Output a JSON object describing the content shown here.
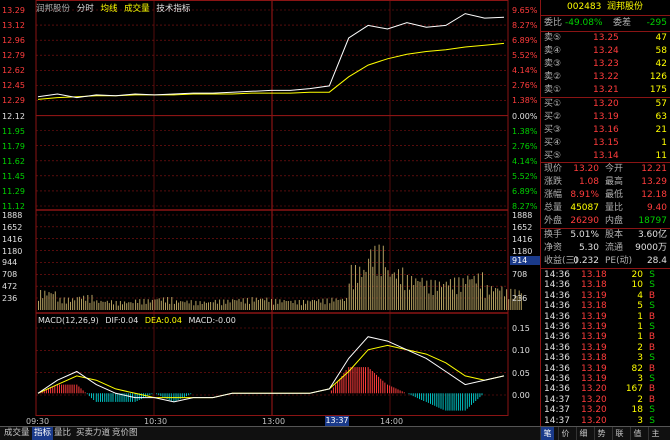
{
  "header": {
    "stock_name": "润邦股份",
    "items": [
      "分时",
      "均线",
      "成交量",
      "技术指标"
    ]
  },
  "macd_label": {
    "name": "MACD(12,26,9)",
    "dif": "DIF:0.04",
    "dea": "DEA:0.04",
    "macd": "MACD:-0.00"
  },
  "price_axis_left": [
    "13.29",
    "13.12",
    "12.96",
    "12.79",
    "12.62",
    "12.45",
    "12.29",
    "12.12",
    "11.95",
    "11.79",
    "11.62",
    "11.45",
    "11.29",
    "11.12"
  ],
  "price_axis_right": [
    "9.65%",
    "8.27%",
    "6.89%",
    "5.52%",
    "4.14%",
    "2.76%",
    "1.38%",
    "0.00%",
    "1.38%",
    "2.76%",
    "4.14%",
    "5.52%",
    "6.89%",
    "8.27%"
  ],
  "volume_axis": [
    "1888",
    "1652",
    "1416",
    "1180",
    "944",
    "708",
    "472",
    "236"
  ],
  "volume_axis_right": [
    "1888",
    "1652",
    "1416",
    "1180",
    "944",
    "708",
    "472",
    "236"
  ],
  "volume_marker": "914",
  "macd_axis": [
    "0.15",
    "0.10",
    "0.05",
    "0.00"
  ],
  "time_axis": [
    "09:30",
    "10:30",
    "13:00",
    "14:00"
  ],
  "time_cursor": "13:37",
  "chart_data": {
    "type": "line",
    "price_ylim": [
      11.12,
      13.29
    ],
    "prev_close": 12.12,
    "x_minutes": [
      0,
      10,
      20,
      30,
      40,
      50,
      60,
      70,
      80,
      90,
      100,
      110,
      120,
      130,
      140,
      150,
      160,
      170,
      180,
      190,
      200,
      210,
      220,
      230,
      240
    ],
    "price": [
      12.33,
      12.36,
      12.32,
      12.35,
      12.34,
      12.36,
      12.35,
      12.36,
      12.37,
      12.37,
      12.38,
      12.39,
      12.4,
      12.4,
      12.42,
      12.45,
      12.98,
      13.12,
      13.08,
      13.15,
      13.1,
      13.12,
      13.25,
      13.2,
      13.21
    ],
    "avg_price": [
      12.3,
      12.32,
      12.33,
      12.34,
      12.34,
      12.35,
      12.35,
      12.35,
      12.36,
      12.36,
      12.36,
      12.37,
      12.37,
      12.37,
      12.38,
      12.38,
      12.55,
      12.68,
      12.75,
      12.8,
      12.83,
      12.85,
      12.88,
      12.9,
      12.92
    ],
    "volume_ylim": [
      0,
      1888
    ],
    "volume": [
      400,
      250,
      300,
      200,
      180,
      220,
      260,
      200,
      180,
      210,
      240,
      260,
      220,
      200,
      230,
      250,
      900,
      1300,
      850,
      700,
      600,
      650,
      750,
      500,
      420
    ],
    "macd_ylim": [
      -0.05,
      0.15
    ],
    "dif": [
      0.0,
      0.03,
      0.05,
      0.02,
      0.0,
      -0.01,
      -0.01,
      -0.02,
      -0.01,
      -0.01,
      0.0,
      0.0,
      0.0,
      0.0,
      0.0,
      0.01,
      0.08,
      0.13,
      0.12,
      0.1,
      0.08,
      0.05,
      0.02,
      0.03,
      0.04
    ],
    "dea": [
      0.0,
      0.02,
      0.04,
      0.03,
      0.01,
      0.0,
      -0.01,
      -0.01,
      -0.01,
      -0.01,
      0.0,
      0.0,
      0.0,
      0.0,
      0.0,
      0.01,
      0.05,
      0.1,
      0.11,
      0.1,
      0.09,
      0.07,
      0.04,
      0.03,
      0.04
    ]
  },
  "quote": {
    "code": "002483",
    "name": "润邦股份",
    "weibi_label": "委比",
    "weibi_value": "-49.08%",
    "weicha_label": "委差",
    "weicha_value": "-295",
    "sell": [
      {
        "label": "卖⑤",
        "price": "13.25",
        "vol": "47"
      },
      {
        "label": "卖④",
        "price": "13.24",
        "vol": "58"
      },
      {
        "label": "卖③",
        "price": "13.23",
        "vol": "42"
      },
      {
        "label": "卖②",
        "price": "13.22",
        "vol": "126"
      },
      {
        "label": "卖①",
        "price": "13.21",
        "vol": "175"
      }
    ],
    "buy": [
      {
        "label": "买①",
        "price": "13.20",
        "vol": "57"
      },
      {
        "label": "买②",
        "price": "13.19",
        "vol": "63"
      },
      {
        "label": "买③",
        "price": "13.16",
        "vol": "21"
      },
      {
        "label": "买④",
        "price": "13.15",
        "vol": "1"
      },
      {
        "label": "买⑤",
        "price": "13.14",
        "vol": "11"
      }
    ],
    "stats": [
      {
        "l1": "现价",
        "v1": "13.20",
        "l2": "今开",
        "v2": "12.21"
      },
      {
        "l1": "涨跌",
        "v1": "1.08",
        "l2": "最高",
        "v2": "13.29"
      },
      {
        "l1": "涨幅",
        "v1": "8.91%",
        "l2": "最低",
        "v2": "12.18"
      },
      {
        "l1": "总量",
        "v1": "45087",
        "l2": "量比",
        "v2": "9.40"
      },
      {
        "l1": "外盘",
        "v1": "26290",
        "l2": "内盘",
        "v2": "18797"
      }
    ],
    "stats2": [
      {
        "l1": "换手",
        "v1": "5.01%",
        "l2": "股本",
        "v2": "3.60亿"
      },
      {
        "l1": "净资",
        "v1": "5.30",
        "l2": "流通",
        "v2": "9000万"
      },
      {
        "l1": "收益(三)",
        "v1": "0.232",
        "l2": "PE(动)",
        "v2": "28.4"
      }
    ]
  },
  "ticks": [
    {
      "t": "14:36",
      "p": "13.18",
      "v": "20",
      "s": "S"
    },
    {
      "t": "14:36",
      "p": "13.18",
      "v": "10",
      "s": "S"
    },
    {
      "t": "14:36",
      "p": "13.19",
      "v": "4",
      "s": "B"
    },
    {
      "t": "14:36",
      "p": "13.18",
      "v": "5",
      "s": "S"
    },
    {
      "t": "14:36",
      "p": "13.19",
      "v": "1",
      "s": "B"
    },
    {
      "t": "14:36",
      "p": "13.19",
      "v": "1",
      "s": "S"
    },
    {
      "t": "14:36",
      "p": "13.19",
      "v": "1",
      "s": "B"
    },
    {
      "t": "14:36",
      "p": "13.19",
      "v": "2",
      "s": "B"
    },
    {
      "t": "14:36",
      "p": "13.18",
      "v": "3",
      "s": "S"
    },
    {
      "t": "14:36",
      "p": "13.19",
      "v": "82",
      "s": "B"
    },
    {
      "t": "14:36",
      "p": "13.19",
      "v": "3",
      "s": "S"
    },
    {
      "t": "14:36",
      "p": "13.20",
      "v": "167",
      "s": "B"
    },
    {
      "t": "14:37",
      "p": "13.20",
      "v": "2",
      "s": "B"
    },
    {
      "t": "14:37",
      "p": "13.20",
      "v": "18",
      "s": "S"
    },
    {
      "t": "14:37",
      "p": "13.20",
      "v": "3",
      "s": "S"
    }
  ],
  "bottom_tabs": [
    "成交量",
    "指标",
    "量比",
    "买卖力道",
    "竞价图"
  ],
  "right_tabs": [
    "笔",
    "价",
    "细",
    "势",
    "联",
    "值",
    "主"
  ],
  "colors": {
    "up": "#ff3c3c",
    "down": "#00d000",
    "grid": "#8a1414",
    "price_line": "#ffffff",
    "avg_line": "#ffff00",
    "vol_bar": "#b4a060"
  }
}
